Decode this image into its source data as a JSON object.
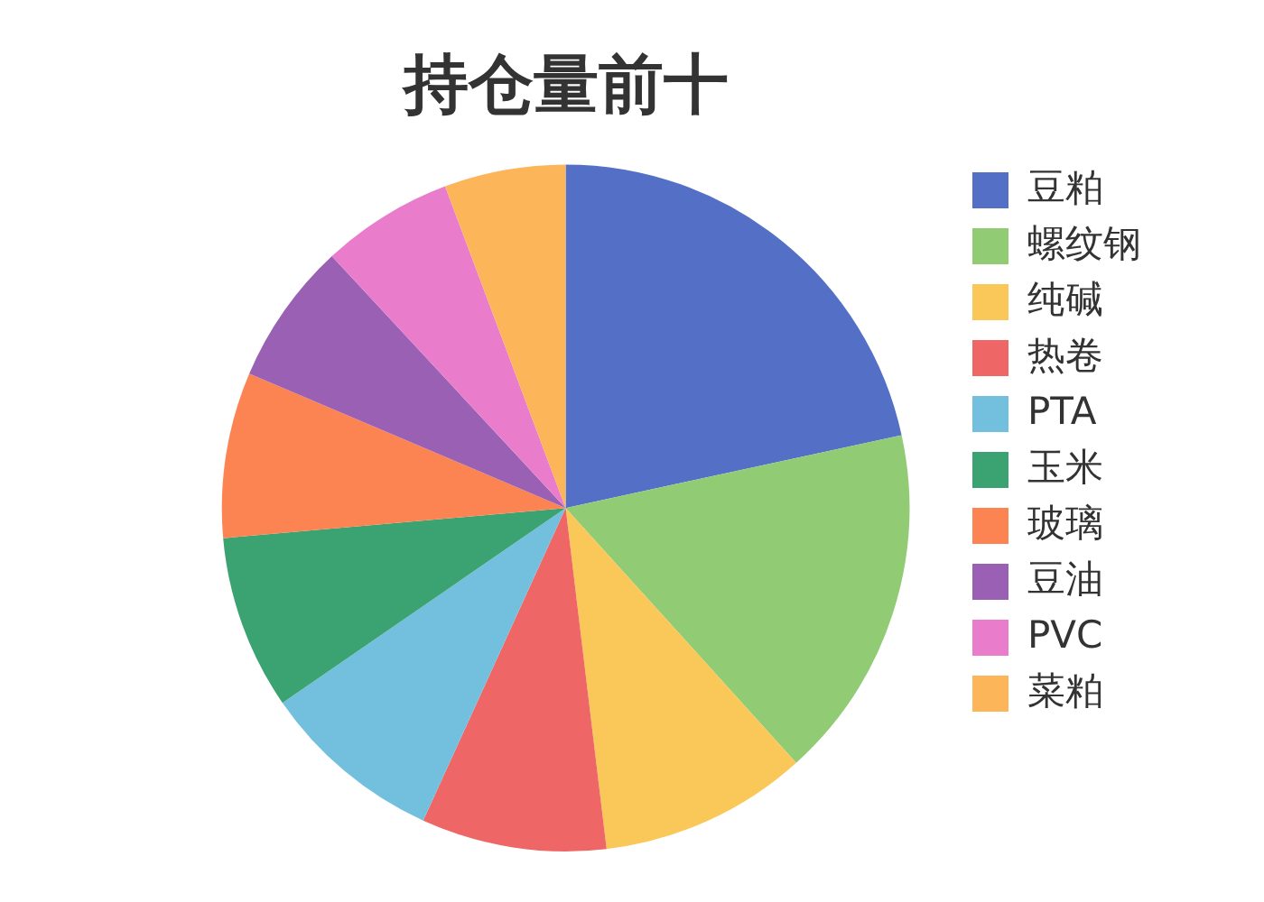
{
  "chart_data": {
    "type": "pie",
    "title": "持仓量前十",
    "categories": [
      "豆粕",
      "螺纹钢",
      "纯碱",
      "热卷",
      "PTA",
      "玉米",
      "玻璃",
      "豆油",
      "PVC",
      "菜粕"
    ],
    "values": [
      21.6,
      16.7,
      9.8,
      8.7,
      8.6,
      8.2,
      7.8,
      6.7,
      6.2,
      5.7
    ],
    "colors": [
      "#5470c6",
      "#91cc75",
      "#fac858",
      "#ee6666",
      "#73c0de",
      "#3ba272",
      "#fc8452",
      "#9a60b4",
      "#ea7ccc",
      "#fdb55a"
    ],
    "legend": "right"
  }
}
